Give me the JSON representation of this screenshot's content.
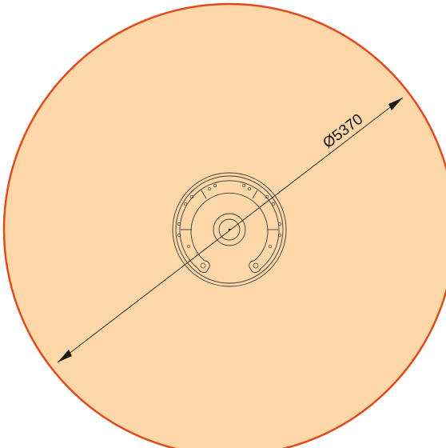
{
  "drawing": {
    "dimension_label": "Ø5370",
    "outer_circle_fill": "#fdd7a8",
    "outer_circle_stroke": "#e04a1c",
    "line_color": "#3a3a3a"
  }
}
